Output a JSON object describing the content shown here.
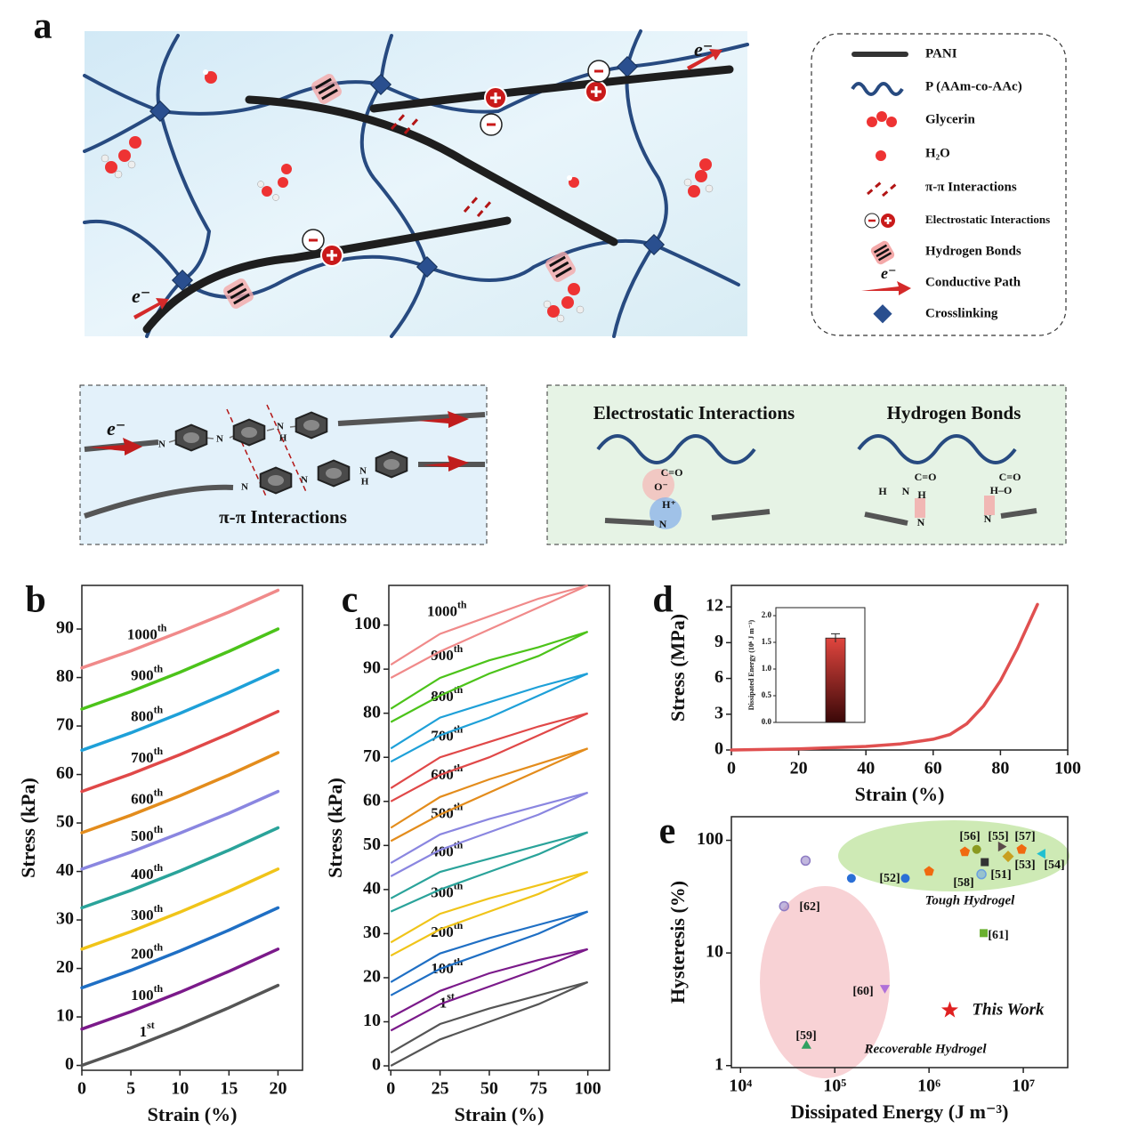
{
  "panel_labels": [
    "a",
    "b",
    "c",
    "d",
    "e"
  ],
  "diagram": {
    "electron": "e⁻",
    "legend": [
      "PANI",
      "P (AAm-co-AAc)",
      "Glycerin",
      "H₂O",
      "π-π Interactions",
      "Electrostatic Interactions",
      "Hydrogen Bonds",
      "Conductive Path",
      "Crosslinking"
    ],
    "pi_box": {
      "title": "π-π Interactions",
      "atoms": [
        "N",
        "N",
        "N",
        "H",
        "N",
        "N",
        "N",
        "H"
      ]
    },
    "bond_box": {
      "titles": [
        "Electrostatic Interactions",
        "Hydrogen Bonds"
      ],
      "atoms": [
        "C=O",
        "O⁻",
        "H⁺",
        "N",
        "C=O",
        "H",
        "N",
        "H",
        "N",
        "C=O",
        "H–O",
        "N"
      ]
    }
  },
  "chart_data": [
    {
      "type": "line",
      "xlabel": "Strain (%)",
      "ylabel": "Stress (kPa)",
      "xlim": [
        0,
        22.5
      ],
      "ylim": [
        -1,
        99
      ],
      "xticks": [
        0,
        5,
        10,
        15,
        20
      ],
      "yticks": [
        0,
        10,
        20,
        30,
        40,
        50,
        60,
        70,
        80,
        90
      ],
      "x": [
        0,
        5,
        10,
        15,
        20
      ],
      "series": [
        {
          "name": "1st",
          "color": "#555555",
          "values": [
            0,
            3.6,
            7.6,
            11.9,
            16.5
          ]
        },
        {
          "name": "100th",
          "color": "#7b1a8a",
          "values": [
            7.5,
            11.1,
            15.1,
            19.4,
            24
          ]
        },
        {
          "name": "200th",
          "color": "#1f6fc4",
          "values": [
            16,
            19.6,
            23.6,
            27.9,
            32.5
          ]
        },
        {
          "name": "300th",
          "color": "#f0c419",
          "values": [
            24,
            27.6,
            31.6,
            35.9,
            40.5
          ]
        },
        {
          "name": "400th",
          "color": "#2aa39a",
          "values": [
            32.5,
            36.1,
            40.1,
            44.4,
            49
          ]
        },
        {
          "name": "500th",
          "color": "#8a86e0",
          "values": [
            40.5,
            44,
            47.9,
            52,
            56.5
          ]
        },
        {
          "name": "600th",
          "color": "#e38c1c",
          "values": [
            48,
            51.6,
            55.6,
            59.9,
            64.5
          ]
        },
        {
          "name": "700th",
          "color": "#e04848",
          "values": [
            56.5,
            60.1,
            64.1,
            68.4,
            73
          ]
        },
        {
          "name": "800th",
          "color": "#1ea0d8",
          "values": [
            65,
            68.6,
            72.6,
            76.9,
            81.5
          ]
        },
        {
          "name": "900th",
          "color": "#4cc31a",
          "values": [
            73.5,
            77.1,
            81.1,
            85.4,
            90
          ]
        },
        {
          "name": "1000th",
          "color": "#f08a8a",
          "values": [
            82,
            85.5,
            89.4,
            93.5,
            98
          ]
        }
      ]
    },
    {
      "type": "hysteresis",
      "xlabel": "Strain (%)",
      "ylabel": "Stress (kPa)",
      "xlim": [
        -1,
        111
      ],
      "ylim": [
        -1,
        109
      ],
      "xticks": [
        0,
        25,
        50,
        75,
        100
      ],
      "yticks": [
        0,
        10,
        20,
        30,
        40,
        50,
        60,
        70,
        80,
        90,
        100
      ],
      "x": [
        0,
        25,
        50,
        75,
        100
      ],
      "series": [
        {
          "name": "1st",
          "color": "#555555",
          "loading": [
            3,
            9.5,
            13,
            16,
            19
          ],
          "unloading": [
            0,
            6,
            10,
            14,
            19
          ]
        },
        {
          "name": "100th",
          "color": "#7b1a8a",
          "loading": [
            11,
            17,
            21,
            24,
            26.5
          ],
          "unloading": [
            8,
            14,
            18,
            22,
            26.5
          ]
        },
        {
          "name": "200th",
          "color": "#1f6fc4",
          "loading": [
            19,
            25.5,
            29,
            32,
            35
          ],
          "unloading": [
            16,
            22,
            26,
            30,
            35
          ]
        },
        {
          "name": "300th",
          "color": "#f0c419",
          "loading": [
            28,
            34.5,
            38,
            41,
            44
          ],
          "unloading": [
            25,
            31,
            35,
            39,
            44
          ]
        },
        {
          "name": "400th",
          "color": "#2aa39a",
          "loading": [
            38,
            44,
            47,
            50,
            53
          ],
          "unloading": [
            35,
            40,
            44,
            48,
            53
          ]
        },
        {
          "name": "500th",
          "color": "#8a86e0",
          "loading": [
            46,
            52.5,
            56,
            59,
            62
          ],
          "unloading": [
            43,
            49,
            53,
            57,
            62
          ]
        },
        {
          "name": "600th",
          "color": "#e38c1c",
          "loading": [
            54,
            61,
            65,
            68.5,
            72
          ],
          "unloading": [
            51,
            57,
            62,
            67,
            72
          ]
        },
        {
          "name": "700th",
          "color": "#e04848",
          "loading": [
            63,
            70,
            73.5,
            77,
            80
          ],
          "unloading": [
            60,
            66,
            70,
            75,
            80
          ]
        },
        {
          "name": "800th",
          "color": "#1ea0d8",
          "loading": [
            72,
            79,
            82.5,
            86,
            89
          ],
          "unloading": [
            69,
            75,
            79,
            84,
            89
          ]
        },
        {
          "name": "900th",
          "color": "#4cc31a",
          "loading": [
            81,
            88,
            92,
            95,
            98.5
          ],
          "unloading": [
            78,
            84,
            89,
            93,
            98.5
          ]
        },
        {
          "name": "1000th",
          "color": "#f08a8a",
          "loading": [
            91,
            98,
            102,
            106,
            109
          ],
          "unloading": [
            88,
            94,
            99,
            104,
            109
          ]
        }
      ]
    },
    {
      "type": "line",
      "xlabel": "Strain (%)",
      "ylabel": "Stress (MPa)",
      "xlim": [
        0,
        100
      ],
      "ylim": [
        0,
        13.8
      ],
      "xticks": [
        0,
        20,
        40,
        60,
        80,
        100
      ],
      "yticks": [
        0,
        3,
        6,
        9,
        12
      ],
      "x": [
        0,
        20,
        40,
        50,
        60,
        65,
        70,
        75,
        80,
        85,
        91
      ],
      "series": [
        {
          "color": "#e05050",
          "values": [
            0,
            0.1,
            0.3,
            0.5,
            0.9,
            1.3,
            2.2,
            3.7,
            5.8,
            8.5,
            12.2
          ]
        }
      ],
      "inset": {
        "type": "bar",
        "ylabel": "Dissipated Energy (10⁶ J m⁻³)",
        "ylim": [
          0,
          2.15
        ],
        "yticks": [
          {
            "value": 0,
            "label": "0.0"
          },
          {
            "value": 0.5,
            "label": "0.5"
          },
          {
            "value": 1,
            "label": "1.0"
          },
          {
            "value": 1.5,
            "label": "1.5"
          },
          {
            "value": 2,
            "label": "2.0"
          }
        ],
        "values": [
          1.58
        ],
        "errors": [
          0.08
        ],
        "color": "#e0453e"
      }
    },
    {
      "type": "scatter",
      "xlabel": "Dissipated Energy (J m⁻³)",
      "ylabel": "Hysteresis (%)",
      "xscale": "log",
      "yscale": "log",
      "xlim": [
        8000,
        29600000
      ],
      "ylim": [
        0.96,
        162
      ],
      "xticks": [
        {
          "value": 10000,
          "label": "10⁴"
        },
        {
          "value": 100000,
          "label": "10⁵"
        },
        {
          "value": 1000000,
          "label": "10⁶"
        },
        {
          "value": 10000000,
          "label": "10⁷"
        }
      ],
      "yticks": [
        1,
        10,
        100
      ],
      "regions": [
        {
          "label": "Tough Hydrogel",
          "color": "#c9e8ad"
        },
        {
          "label": "Recoverable Hydrogel",
          "color": "#f7cdd0"
        }
      ],
      "series": [
        {
          "name": "[52]",
          "color": "#2a6fd6",
          "marker": "circle",
          "x": [
            150000,
            560000
          ],
          "values": [
            46,
            46
          ]
        },
        {
          "name": "[62]",
          "color": "#8e7cc3",
          "marker": "halfcircle",
          "x": [
            49000,
            29000
          ],
          "values": [
            66,
            26
          ]
        },
        {
          "name": "[58]",
          "color": "#6aa0e0",
          "marker": "halfcircle",
          "x": [
            3600000
          ],
          "values": [
            50
          ]
        },
        {
          "name": "[51]",
          "color": "#333333",
          "marker": "square",
          "x": [
            3900000
          ],
          "values": [
            64
          ]
        },
        {
          "name": "[53]",
          "color": "#c8a020",
          "marker": "diamond",
          "x": [
            6900000
          ],
          "values": [
            72
          ]
        },
        {
          "name": "[55]",
          "color": "#5a4a4a",
          "marker": "triangle-right",
          "x": [
            5800000
          ],
          "values": [
            88
          ]
        },
        {
          "name": "[56]",
          "color": "#8a9a20",
          "marker": "circle",
          "x": [
            3200000
          ],
          "values": [
            83
          ]
        },
        {
          "name": "[57]",
          "color": "#f06a10",
          "marker": "pentagon",
          "x": [
            1000000,
            2400000,
            9600000
          ],
          "values": [
            53,
            79,
            83
          ]
        },
        {
          "name": "[54]",
          "color": "#20c0d0",
          "marker": "triangle-left",
          "x": [
            16000000
          ],
          "values": [
            76
          ]
        },
        {
          "name": "[61]",
          "color": "#6ab030",
          "marker": "square",
          "x": [
            3800000
          ],
          "values": [
            15
          ]
        },
        {
          "name": "[60]",
          "color": "#b070d8",
          "marker": "triangle-down",
          "x": [
            340000
          ],
          "values": [
            4.9
          ]
        },
        {
          "name": "[59]",
          "color": "#30a060",
          "marker": "triangle-up",
          "x": [
            50000
          ],
          "values": [
            1.5
          ]
        },
        {
          "name": "This Work",
          "color": "#e02020",
          "marker": "star",
          "x": [
            1660000
          ],
          "values": [
            3.1
          ]
        }
      ]
    }
  ]
}
